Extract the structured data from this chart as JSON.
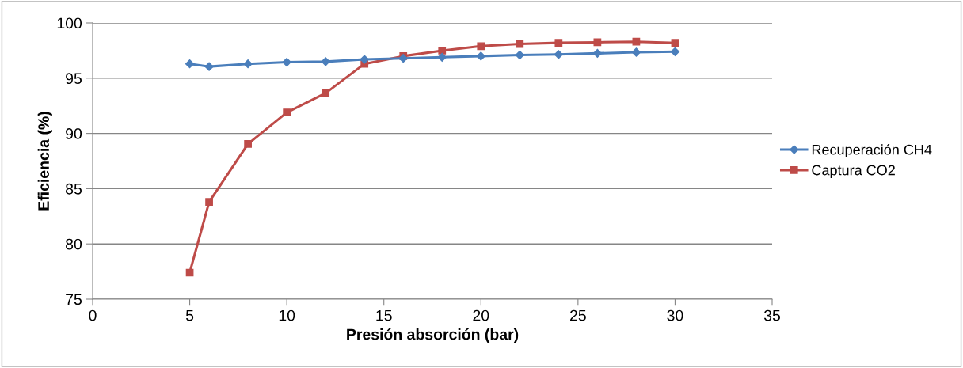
{
  "chart_data": {
    "type": "line",
    "xlabel": "Presión absorción (bar)",
    "ylabel": "Eficiencia (%)",
    "xlim": [
      0,
      35
    ],
    "xticks": [
      0,
      5,
      10,
      15,
      20,
      25,
      30,
      35
    ],
    "ylim": [
      75,
      100
    ],
    "yticks": [
      75,
      80,
      85,
      90,
      95,
      100
    ],
    "grid": "y",
    "legend": "right",
    "series": [
      {
        "name": "Recuperación CH4",
        "color": "#4a7ebb",
        "marker": "diamond",
        "x": [
          5,
          6,
          8,
          10,
          12,
          14,
          16,
          18,
          20,
          22,
          24,
          26,
          28,
          30
        ],
        "values": [
          96.3,
          96.05,
          96.3,
          96.45,
          96.5,
          96.7,
          96.8,
          96.9,
          97.0,
          97.1,
          97.15,
          97.25,
          97.35,
          97.4
        ]
      },
      {
        "name": "Captura CO2",
        "color": "#be4b48",
        "marker": "square",
        "x": [
          5,
          6,
          8,
          10,
          12,
          14,
          16,
          18,
          20,
          22,
          24,
          26,
          28,
          30
        ],
        "values": [
          77.4,
          83.8,
          89.05,
          91.9,
          93.65,
          96.3,
          97.0,
          97.5,
          97.9,
          98.1,
          98.2,
          98.25,
          98.3,
          98.2
        ]
      }
    ]
  }
}
